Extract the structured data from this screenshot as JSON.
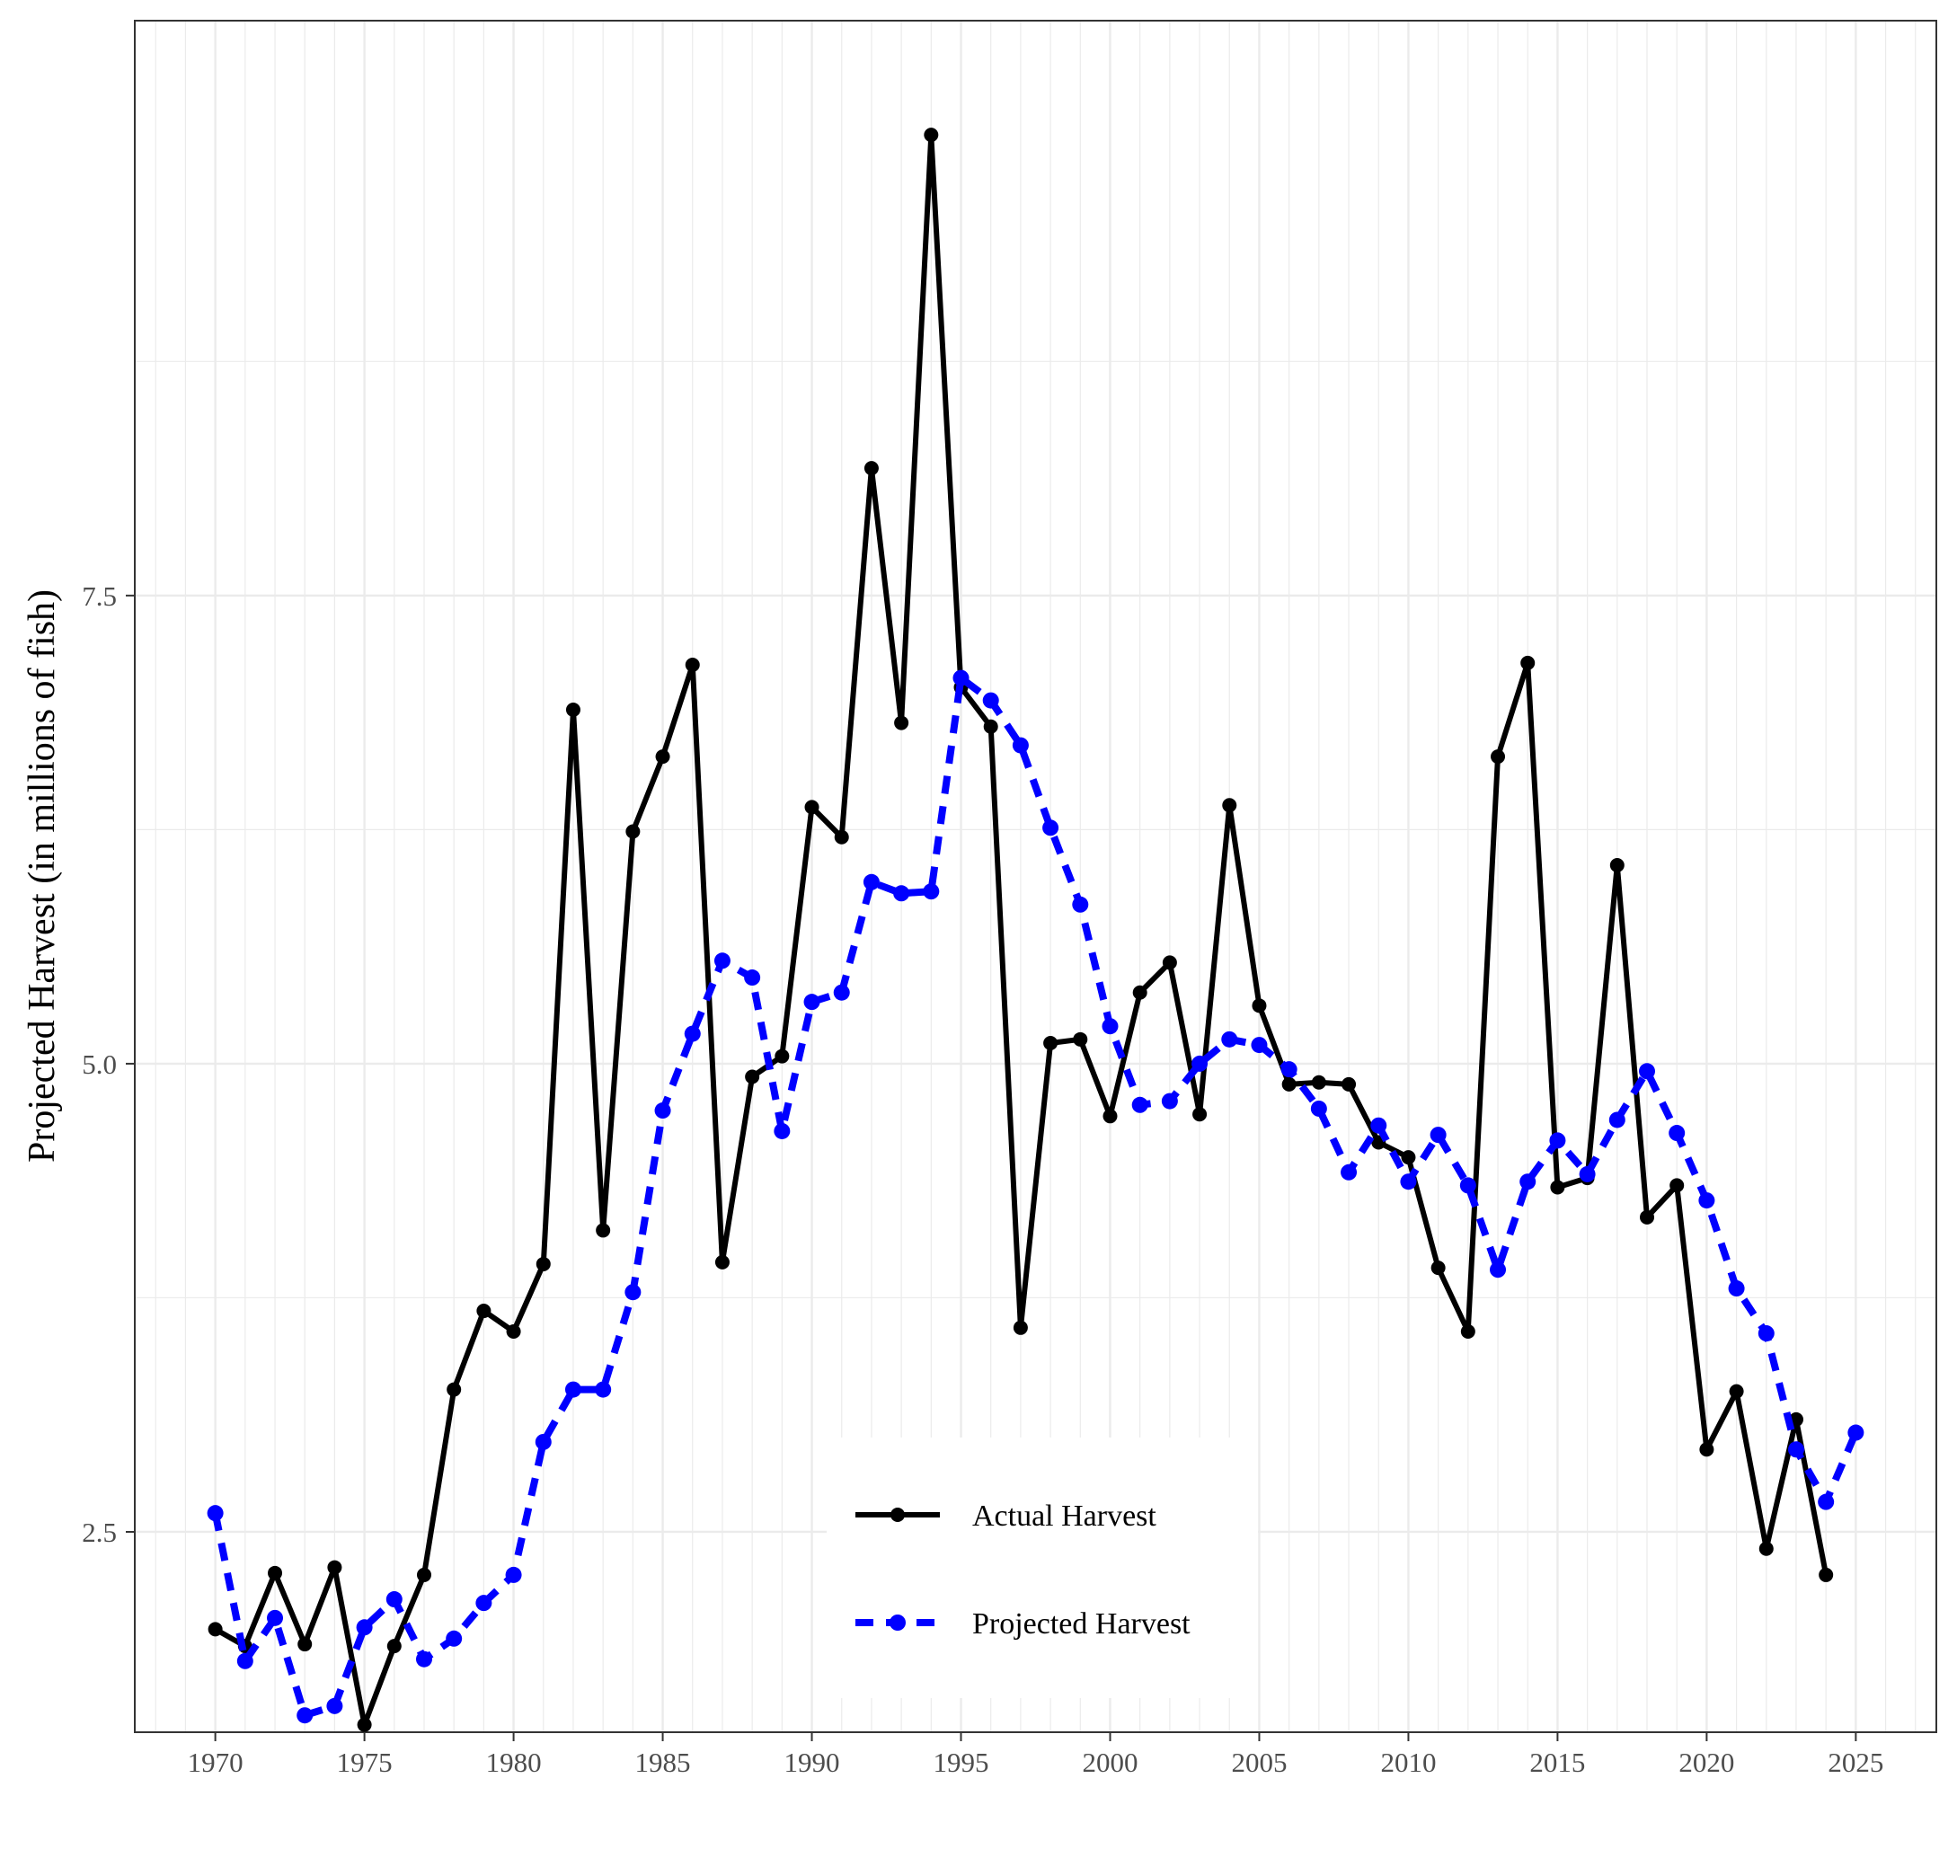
{
  "chart_data": {
    "type": "line",
    "title": "",
    "xlabel": "",
    "ylabel": "Projected Harvest (in millions of fish)",
    "xlim": [
      1967.3,
      2027.7
    ],
    "ylim": [
      1.43,
      10.57
    ],
    "x_ticks": [
      1970,
      1975,
      1980,
      1985,
      1990,
      1995,
      2000,
      2005,
      2010,
      2015,
      2020,
      2025
    ],
    "y_ticks": [
      2.5,
      5.0,
      7.5
    ],
    "y_tick_labels": [
      "2.5",
      "5.0",
      "7.5"
    ],
    "grid": true,
    "legend_position": "bottom-center",
    "series": [
      {
        "name": "Actual Harvest",
        "color": "#000000",
        "line_style": "solid",
        "x": [
          1970,
          1971,
          1972,
          1973,
          1974,
          1975,
          1976,
          1977,
          1978,
          1979,
          1980,
          1981,
          1982,
          1983,
          1984,
          1985,
          1986,
          1987,
          1988,
          1989,
          1990,
          1991,
          1992,
          1993,
          1994,
          1995,
          1996,
          1997,
          1998,
          1999,
          2000,
          2001,
          2002,
          2003,
          2004,
          2005,
          2006,
          2007,
          2008,
          2009,
          2010,
          2011,
          2012,
          2013,
          2014,
          2015,
          2016,
          2017,
          2018,
          2019,
          2020,
          2021,
          2022,
          2023,
          2024
        ],
        "y": [
          1.98,
          1.89,
          2.28,
          1.9,
          2.31,
          1.47,
          1.89,
          2.27,
          3.26,
          3.68,
          3.57,
          3.93,
          6.89,
          4.11,
          6.24,
          6.64,
          7.13,
          3.94,
          4.93,
          5.04,
          6.37,
          6.21,
          8.18,
          6.82,
          9.96,
          7.01,
          6.8,
          3.59,
          5.11,
          5.13,
          4.72,
          5.38,
          5.54,
          4.73,
          6.38,
          5.31,
          4.89,
          4.9,
          4.89,
          4.58,
          4.5,
          3.91,
          3.57,
          6.64,
          7.14,
          4.34,
          4.39,
          6.06,
          4.18,
          4.35,
          2.94,
          3.25,
          2.41,
          3.1,
          2.27
        ],
        "y_prev_labels": []
      },
      {
        "name": "Projected Harvest",
        "color": "#0000ff",
        "line_style": "dashed",
        "x": [
          1970,
          1971,
          1972,
          1973,
          1974,
          1975,
          1976,
          1977,
          1978,
          1979,
          1980,
          1981,
          1982,
          1983,
          1984,
          1985,
          1986,
          1987,
          1988,
          1989,
          1990,
          1991,
          1992,
          1993,
          1994,
          1995,
          1996,
          1997,
          1998,
          1999,
          2000,
          2001,
          2002,
          2003,
          2004,
          2005,
          2006,
          2007,
          2008,
          2009,
          2010,
          2011,
          2012,
          2013,
          2014,
          2015,
          2016,
          2017,
          2018,
          2019,
          2020,
          2021,
          2022,
          2023,
          2024,
          2025
        ],
        "y": [
          2.6,
          1.81,
          2.04,
          1.52,
          1.57,
          1.99,
          2.14,
          1.82,
          1.93,
          2.12,
          2.27,
          2.98,
          3.26,
          3.26,
          3.78,
          4.75,
          5.16,
          5.55,
          5.46,
          4.64,
          5.33,
          5.38,
          5.97,
          5.91,
          5.92,
          7.06,
          6.94,
          6.7,
          6.26,
          5.85,
          5.2,
          4.78,
          4.8,
          5.0,
          5.13,
          5.1,
          4.97,
          4.76,
          4.42,
          4.67,
          4.37,
          4.62,
          4.35,
          3.9,
          4.37,
          4.59,
          4.41,
          4.7,
          4.96,
          4.63,
          4.27,
          3.8,
          3.56,
          2.94,
          2.66,
          3.03
        ]
      }
    ]
  },
  "legend": {
    "items": [
      {
        "label": "Actual Harvest",
        "color": "#000000",
        "style": "solid"
      },
      {
        "label": "Projected Harvest",
        "color": "#0000ff",
        "style": "dashed"
      }
    ]
  }
}
